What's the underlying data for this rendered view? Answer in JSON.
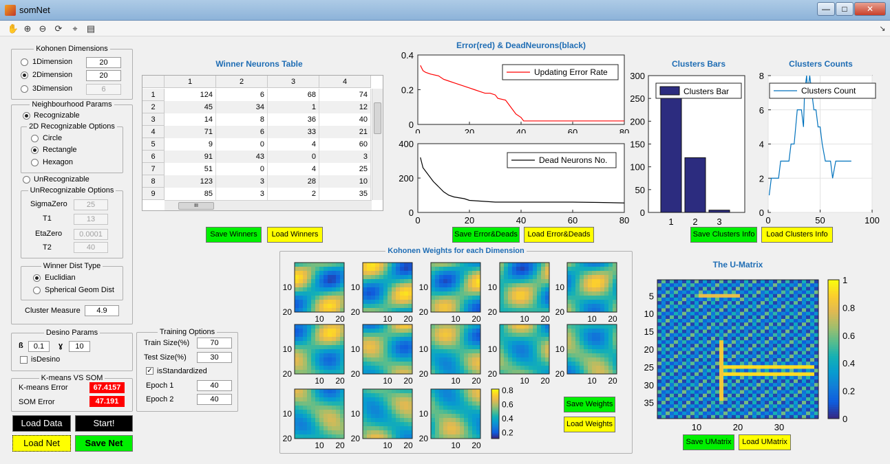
{
  "window": {
    "title": "somNet",
    "minimize": "—",
    "maximize": "□",
    "close": "✕"
  },
  "toolbar": {
    "icons": [
      "hand-icon",
      "zoom-in-icon",
      "zoom-out-icon",
      "rotate-icon",
      "data-cursor-icon",
      "legend-icon"
    ],
    "dock_arrow": "↘"
  },
  "kohonen_dimensions": {
    "legend": "Kohonen Dimensions",
    "options": [
      {
        "label": "1Dimension",
        "value": "20",
        "selected": false
      },
      {
        "label": "2Dimension",
        "value": "20",
        "selected": true
      },
      {
        "label": "3Dimension",
        "value": "6",
        "selected": false
      }
    ]
  },
  "neighbourhood": {
    "legend": "Neighbourhood Params",
    "recognizable_label": "Recognizable",
    "opt2d_legend": "2D Recognizable Options",
    "shapes": [
      {
        "label": "Circle",
        "selected": false
      },
      {
        "label": "Rectangle",
        "selected": true
      },
      {
        "label": "Hexagon",
        "selected": false
      }
    ],
    "unrecognizable_label": "UnRecognizable",
    "unrec_legend": "UnRecognizable Options",
    "params": [
      {
        "label": "SigmaZero",
        "value": "25"
      },
      {
        "label": "T1",
        "value": "13"
      },
      {
        "label": "EtaZero",
        "value": "0.0001"
      },
      {
        "label": "T2",
        "value": "40"
      }
    ],
    "dist_legend": "Winner Dist Type",
    "dist": [
      {
        "label": "Euclidian",
        "selected": true
      },
      {
        "label": "Spherical Geom Dist",
        "selected": false
      }
    ],
    "cluster_measure_label": "Cluster Measure",
    "cluster_measure_value": "4.9"
  },
  "desino": {
    "legend": "Desino Params",
    "beta_label": "ß",
    "beta": "0.1",
    "gamma_label": "ɣ",
    "gamma": "10",
    "is_desino": "isDesino"
  },
  "kmeans": {
    "legend": "K-means VS SOM",
    "kmeans_label": "K-means Error",
    "kmeans_value": "67.4157",
    "som_label": "SOM Error",
    "som_value": "47.191"
  },
  "main_buttons": {
    "load_data": "Load Data",
    "start": "Start!",
    "load_net": "Load Net",
    "save_net": "Save Net"
  },
  "training": {
    "legend": "Training Options",
    "train_label": "Train Size(%)",
    "train_value": "70",
    "test_label": "Test Size(%)",
    "test_value": "30",
    "standardized": "isStandardized",
    "epoch1_label": "Epoch 1",
    "epoch1_value": "40",
    "epoch2_label": "Epoch 2",
    "epoch2_value": "40"
  },
  "winners_table": {
    "title": "Winner Neurons Table",
    "columns": [
      "1",
      "2",
      "3",
      "4"
    ],
    "rows": [
      [
        "1",
        "124",
        "6",
        "68",
        "74"
      ],
      [
        "2",
        "45",
        "34",
        "1",
        "12"
      ],
      [
        "3",
        "14",
        "8",
        "36",
        "40"
      ],
      [
        "4",
        "71",
        "6",
        "33",
        "21"
      ],
      [
        "5",
        "9",
        "0",
        "4",
        "60"
      ],
      [
        "6",
        "91",
        "43",
        "0",
        "3"
      ],
      [
        "7",
        "51",
        "0",
        "4",
        "25"
      ],
      [
        "8",
        "123",
        "3",
        "28",
        "10"
      ],
      [
        "9",
        "85",
        "3",
        "2",
        "35"
      ]
    ],
    "save": "Save Winners",
    "load": "Load Winners",
    "hscroll_grip": "III"
  },
  "error_chart": {
    "title": "Error(red) & DeadNeurons(black)",
    "save": "Save Error&Deads",
    "load": "Load Error&Deads"
  },
  "clusters": {
    "bars_title": "Clusters Bars",
    "counts_title": "Clusters Counts",
    "save": "Save Clusters Info",
    "load": "Load Clusters Info"
  },
  "weights": {
    "legend": "Kohonen Weights for each Dimension",
    "save": "Save Weights",
    "load": "Load Weights",
    "tick_10": "10",
    "tick_20": "20",
    "colorbar_ticks": [
      "0.8",
      "0.6",
      "0.4",
      "0.2"
    ]
  },
  "umatrix": {
    "title": "The U-Matrix",
    "save": "Save UMatrix",
    "load": "Load UMatrix",
    "yticks": [
      "5",
      "10",
      "15",
      "20",
      "25",
      "30",
      "35"
    ],
    "xticks": [
      "10",
      "20",
      "30"
    ],
    "colorbar_ticks": [
      "1",
      "0.8",
      "0.6",
      "0.4",
      "0.2",
      "0"
    ]
  },
  "colors": {
    "parula_low": "#352a87",
    "parula_mid": "#21a9c4",
    "parula_high": "#f9fb0e",
    "error_red": "#ff0000",
    "bar_navy": "#2c2c7f",
    "line_blue": "#0072bd"
  },
  "chart_data": [
    {
      "type": "line",
      "title": "",
      "legend": "Updating Error Rate",
      "legend_position": "top-right",
      "color": "#ff0000",
      "xlim": [
        0,
        80
      ],
      "ylim": [
        0,
        0.4
      ],
      "xticks": [
        0,
        20,
        40,
        60,
        80
      ],
      "yticks": [
        0,
        0.2,
        0.4
      ],
      "x": [
        1,
        2,
        3,
        5,
        8,
        10,
        12,
        14,
        16,
        18,
        20,
        22,
        24,
        26,
        28,
        30,
        31,
        34,
        36,
        38,
        40,
        41,
        45,
        50,
        60,
        70,
        80
      ],
      "y": [
        0.34,
        0.31,
        0.3,
        0.29,
        0.28,
        0.26,
        0.25,
        0.24,
        0.23,
        0.22,
        0.21,
        0.2,
        0.19,
        0.18,
        0.18,
        0.17,
        0.15,
        0.14,
        0.1,
        0.06,
        0.04,
        0.02,
        0.02,
        0.02,
        0.02,
        0.02,
        0.02
      ]
    },
    {
      "type": "line",
      "title": "",
      "legend": "Dead Neurons No.",
      "legend_position": "top-right",
      "color": "#000000",
      "xlim": [
        0,
        80
      ],
      "ylim": [
        0,
        400
      ],
      "xticks": [
        0,
        20,
        40,
        60,
        80
      ],
      "yticks": [
        0,
        200,
        400
      ],
      "x": [
        1,
        2,
        4,
        6,
        8,
        10,
        12,
        14,
        16,
        18,
        20,
        25,
        30,
        40,
        50,
        60,
        70,
        80
      ],
      "y": [
        320,
        260,
        220,
        180,
        150,
        120,
        100,
        90,
        85,
        80,
        70,
        65,
        60,
        60,
        60,
        60,
        58,
        55
      ]
    },
    {
      "type": "bar",
      "title": "Clusters Bars",
      "legend": "Clusters Bar",
      "color": "#2c2c7f",
      "categories": [
        "1",
        "2",
        "3"
      ],
      "values": [
        270,
        120,
        5
      ],
      "ylim": [
        0,
        300
      ],
      "yticks": [
        0,
        50,
        100,
        150,
        200,
        250,
        300
      ]
    },
    {
      "type": "line",
      "title": "Clusters Counts",
      "legend": "Clusters Count",
      "color": "#0072bd",
      "xlim": [
        0,
        100
      ],
      "ylim": [
        0,
        8
      ],
      "xticks": [
        0,
        50,
        100
      ],
      "yticks": [
        0,
        2,
        4,
        6,
        8
      ],
      "x": [
        1,
        3,
        5,
        8,
        10,
        12,
        15,
        18,
        20,
        22,
        25,
        28,
        30,
        32,
        34,
        35,
        37,
        38,
        40,
        42,
        44,
        46,
        48,
        50,
        52,
        55,
        57,
        60,
        62,
        65,
        70,
        75,
        80
      ],
      "y": [
        1,
        2,
        2,
        2,
        2,
        3,
        3,
        3,
        3,
        4,
        4,
        6,
        6,
        6,
        5,
        7,
        8,
        7,
        8,
        7,
        6,
        6,
        5,
        5,
        4,
        3,
        3,
        3,
        2,
        3,
        3,
        3,
        3
      ]
    }
  ]
}
